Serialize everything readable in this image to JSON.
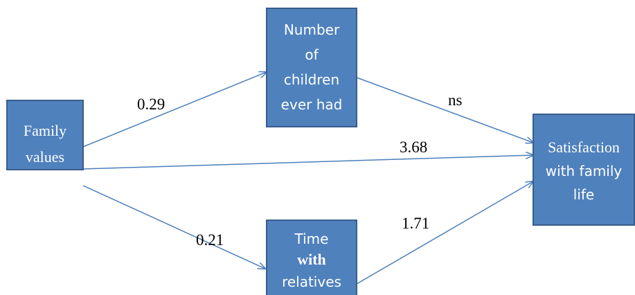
{
  "nodes": [
    {
      "lines": [
        "Family",
        "values"
      ]
    },
    {
      "lines": [
        "Number",
        "of",
        "children",
        "ever had"
      ]
    },
    {
      "lines": [
        "Time",
        "with",
        "relatives"
      ]
    },
    {
      "lines": [
        "Satisfaction",
        "with family",
        "life"
      ]
    }
  ],
  "edges": [
    {
      "label": "0.29"
    },
    {
      "label": "ns"
    },
    {
      "label": "3.68"
    },
    {
      "label": "0.21"
    },
    {
      "label": "1.71"
    }
  ]
}
